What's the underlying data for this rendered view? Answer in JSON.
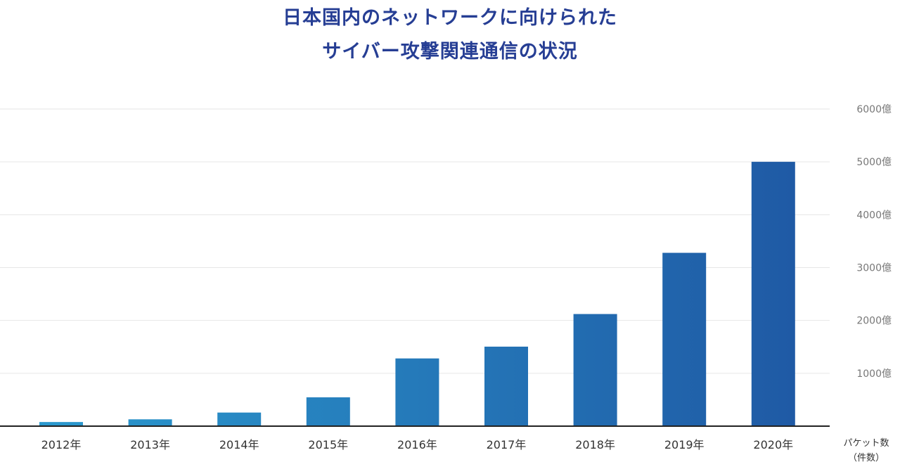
{
  "chart_data": {
    "type": "bar",
    "title_line1": "日本国内のネットワークに向けられた",
    "title_line2": "サイバー攻撃関連通信の状況",
    "categories": [
      "2012年",
      "2013年",
      "2014年",
      "2015年",
      "2016年",
      "2017年",
      "2018年",
      "2019年",
      "2020年"
    ],
    "values": [
      78,
      129,
      257,
      545,
      1281,
      1504,
      2121,
      3279,
      5001
    ],
    "ylim": [
      0,
      6000
    ],
    "yticks": [
      {
        "value": 1000,
        "label": "1000億"
      },
      {
        "value": 2000,
        "label": "2000億"
      },
      {
        "value": 3000,
        "label": "3000億"
      },
      {
        "value": 4000,
        "label": "4000億"
      },
      {
        "value": 5000,
        "label": "5000億"
      },
      {
        "value": 6000,
        "label": "6000億"
      }
    ],
    "unit_label_line1": "パケット数",
    "unit_label_line2": "（件数）",
    "y_axis_position": "right",
    "grid": true,
    "colors": {
      "title": "#263e94",
      "bar_start": "#2b99ce",
      "bar_end": "#1f5aa5",
      "grid": "#e6e6e6",
      "baseline": "#222222"
    }
  }
}
